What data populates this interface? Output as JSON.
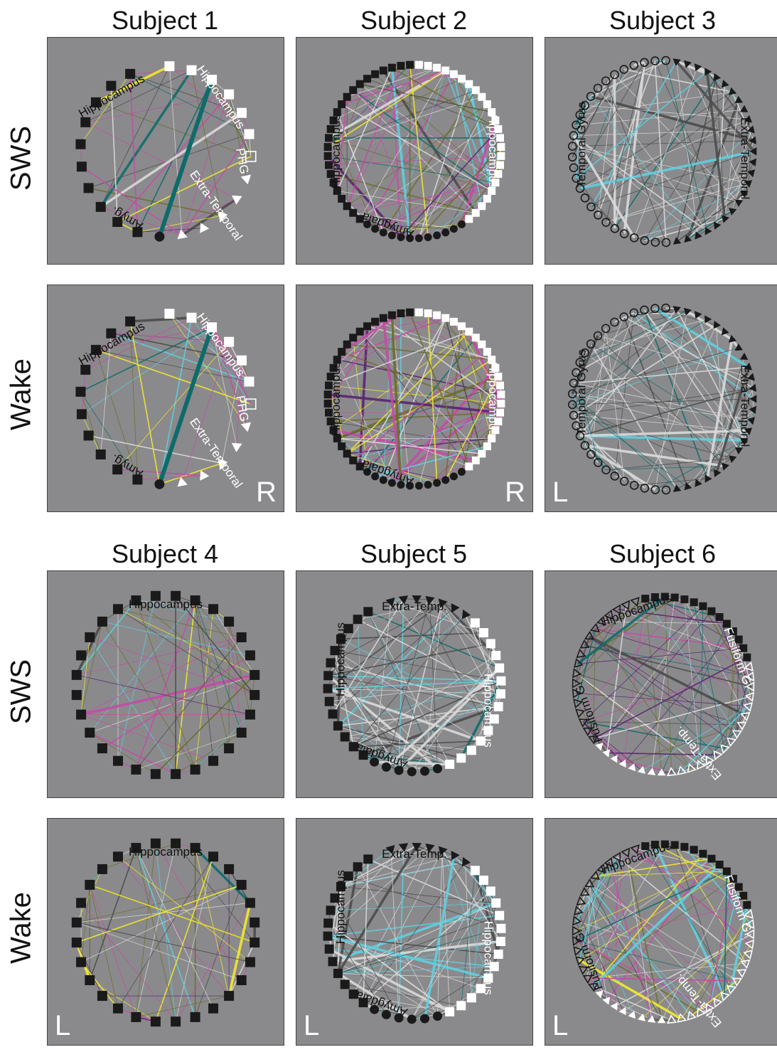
{
  "row_labels": [
    "SWS",
    "Wake",
    "SWS",
    "Wake"
  ],
  "colors": {
    "background": "#8a8a8c",
    "black_node": "#1a1a1a",
    "white_node": "#ffffff",
    "edge_cyan": "#5ecfe0",
    "edge_teal": "#0f6b6b",
    "edge_magenta": "#c44aa6",
    "edge_purple": "#5a2470",
    "edge_olive": "#6b6b2a",
    "edge_yellow": "#f2ea2a",
    "edge_light": "#d9d9d9",
    "edge_dark": "#4a4a4a"
  },
  "subjects": [
    {
      "title": "Subject 1",
      "side": "R",
      "groups": [
        {
          "label": "Hippocampus",
          "shape": "square-black"
        },
        {
          "label": "Hippocampus",
          "shape": "square-white"
        },
        {
          "label": "PHG",
          "shape": "square-hollow"
        },
        {
          "label": "Extra-Temporal",
          "shape": "triangle-white"
        },
        {
          "label": "Amyg.",
          "shape": "circle-black"
        }
      ]
    },
    {
      "title": "Subject 2",
      "side": "R",
      "groups": [
        {
          "label": "Hippocampus",
          "shape": "square-black"
        },
        {
          "label": "Hippocampus",
          "shape": "square-white"
        },
        {
          "label": "Amygdala",
          "shape": "circle-black"
        }
      ]
    },
    {
      "title": "Subject 3",
      "side": "L",
      "groups": [
        {
          "label": "Temporal Gyrus",
          "shape": "circle-hollow"
        },
        {
          "label": "Extra-Temporal",
          "shape": "triangle-black"
        }
      ]
    },
    {
      "title": "Subject 4",
      "side": "L",
      "groups": [
        {
          "label": "Hippocampus",
          "shape": "square-black"
        }
      ]
    },
    {
      "title": "Subject 5",
      "side": "L",
      "groups": [
        {
          "label": "Extra-Temp.",
          "shape": "triangle-black"
        },
        {
          "label": "Hippocampus",
          "shape": "square-white"
        },
        {
          "label": "Amygdala",
          "shape": "circle-black"
        },
        {
          "label": "Hippocampus",
          "shape": "square-black"
        }
      ]
    },
    {
      "title": "Subject 6",
      "side": "L",
      "groups": [
        {
          "label": "Hippocampus",
          "shape": "square-black"
        },
        {
          "label": "Fusiform G.",
          "shape": "triangle-hollow-white"
        },
        {
          "label": "Extra-Temp.",
          "shape": "triangle-white"
        },
        {
          "label": "Fusiform G.",
          "shape": "triangle-hollow-black"
        }
      ]
    }
  ]
}
